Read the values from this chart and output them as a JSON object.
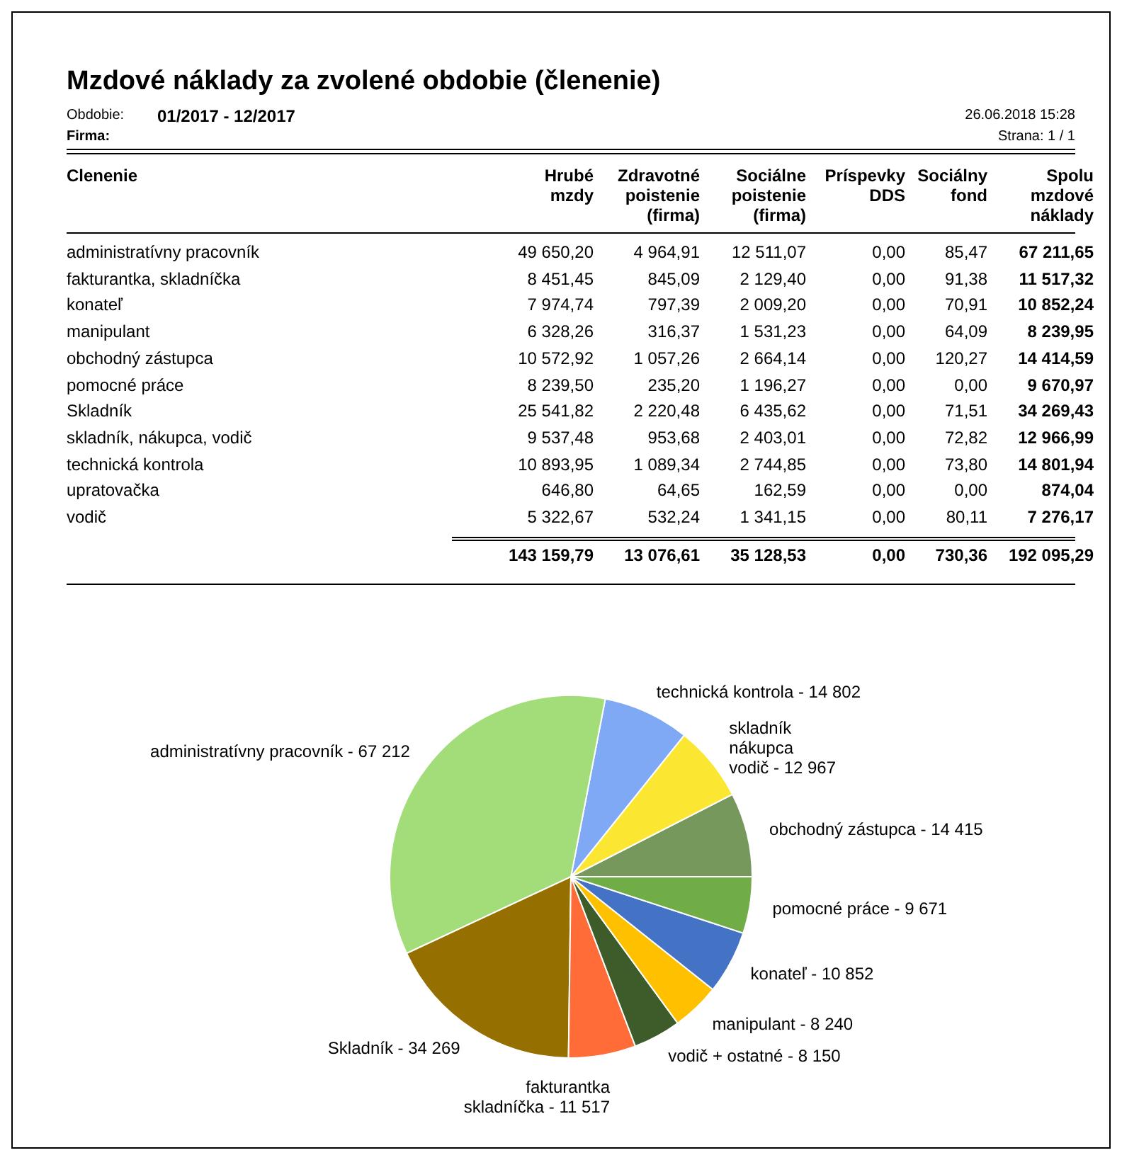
{
  "chart_data": [
    {
      "type": "other",
      "title": "Mzdové náklady za zvolené obdobie (členenie)",
      "annotations": [
        "Obdobie:",
        "01/2017 - 12/2017",
        "Firma:",
        "26.06.2018 15:28",
        "Strana: 1 / 1"
      ],
      "xlabel": "Clenenie",
      "categories": [
        "Hrubé\nmzdy",
        "Zdravotné\npoistenie\n(firma)",
        "Sociálne\npoistenie\n(firma)",
        "Príspevky\nDDS",
        "Sociálny\nfond",
        "Spolu\nmzdové\nnáklady"
      ],
      "y_categories": [
        "administratívny pracovník",
        "fakturantka, skladníčka",
        "konateľ",
        "manipulant",
        "obchodný zástupca",
        "pomocné práce",
        "Skladník",
        "skladník, nákupca, vodič",
        "technická kontrola",
        "upratovačka",
        "vodič",
        null
      ],
      "cell_labels": [
        [
          "49 650,20",
          "4 964,91",
          "12 511,07",
          "0,00",
          "85,47",
          "67 211,65"
        ],
        [
          "8 451,45",
          "845,09",
          "2 129,40",
          "0,00",
          "91,38",
          "11 517,32"
        ],
        [
          "7 974,74",
          "797,39",
          "2 009,20",
          "0,00",
          "70,91",
          "10 852,24"
        ],
        [
          "6 328,26",
          "316,37",
          "1 531,23",
          "0,00",
          "64,09",
          "8 239,95"
        ],
        [
          "10 572,92",
          "1 057,26",
          "2 664,14",
          "0,00",
          "120,27",
          "14 414,59"
        ],
        [
          "8 239,50",
          "235,20",
          "1 196,27",
          "0,00",
          "0,00",
          "9 670,97"
        ],
        [
          "25 541,82",
          "2 220,48",
          "6 435,62",
          "0,00",
          "71,51",
          "34 269,43"
        ],
        [
          "9 537,48",
          "953,68",
          "2 403,01",
          "0,00",
          "72,82",
          "12 966,99"
        ],
        [
          "10 893,95",
          "1 089,34",
          "2 744,85",
          "0,00",
          "73,80",
          "14 801,94"
        ],
        [
          "646,80",
          "64,65",
          "162,59",
          "0,00",
          "0,00",
          "874,04"
        ],
        [
          "5 322,67",
          "532,24",
          "1 341,15",
          "0,00",
          "80,11",
          "7 276,17"
        ],
        [
          "143 159,79",
          "13 076,61",
          "35 128,53",
          "0,00",
          "730,36",
          "192 095,29"
        ]
      ]
    },
    {
      "type": "pie",
      "legend": false,
      "categories": [
        "obchodný zástupca",
        "skladník\nnákupca\nvodič",
        "technická kontrola",
        "administratívny pracovník",
        "Skladník",
        "fakturantka\nskladníčka",
        "vodič + ostatné",
        "manipulant",
        "konateľ",
        "pomocné práce"
      ],
      "values": [
        14415,
        12967,
        14802,
        67212,
        34269,
        11517,
        8150,
        8240,
        10852,
        9671
      ],
      "value_labels": [
        "14 415",
        "12 967",
        "14 802",
        "67 212",
        "34 269",
        "11 517",
        "8 150",
        "8 240",
        "10 852",
        "9 671"
      ],
      "colors": [
        "#77985c",
        "#fbe731",
        "#7fa8f5",
        "#a3dd7a",
        "#957000",
        "#ff6c37",
        "#3e5b2a",
        "#ffc000",
        "#4472c4",
        "#70ad47"
      ]
    }
  ]
}
